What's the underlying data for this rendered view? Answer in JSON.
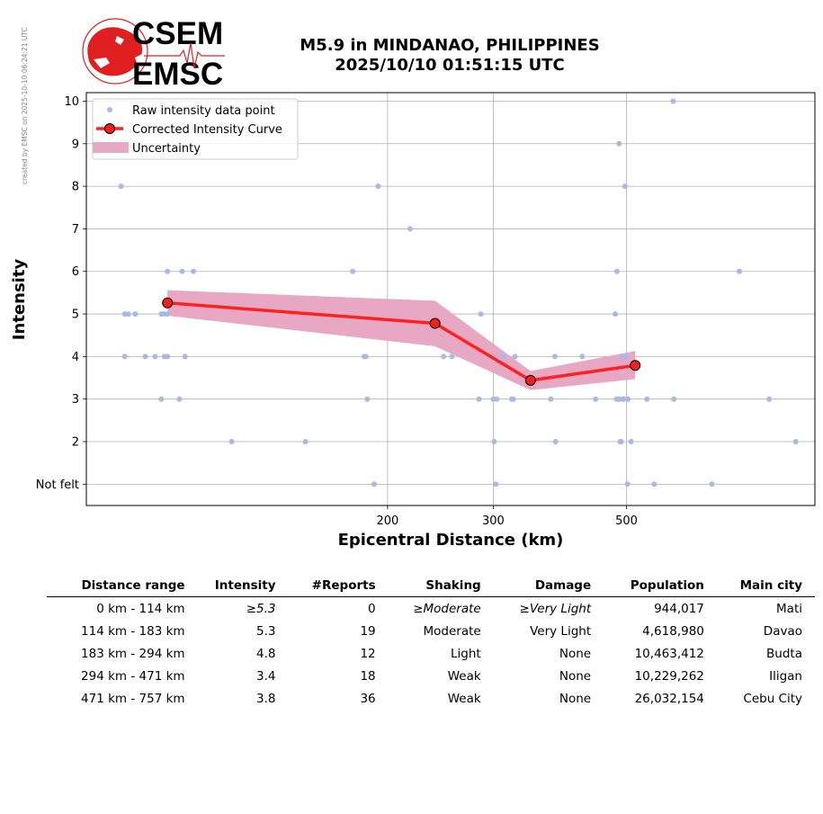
{
  "watermark": "created by EMSC on 2025-10-10 06:24:21 UTC",
  "logo": {
    "line1": "CSEM",
    "line2": "EMSC"
  },
  "title": {
    "line1": "M5.9 in MINDANAO, PHILIPPINES",
    "line2": "2025/10/10 01:51:15 UTC"
  },
  "colors": {
    "raw": "#aab8e8",
    "curve": "#ff2020",
    "marker_face": "#ee2020",
    "uncertainty": "#e8a8c4",
    "logo_red": "#e02020"
  },
  "chart_data": {
    "type": "scatter",
    "xlabel": "Epicentral Distance (km)",
    "ylabel": "Intensity",
    "xscale": "log",
    "xlim": [
      63,
      1030
    ],
    "ylim": [
      0.5,
      10.2
    ],
    "xticks": [
      200,
      300,
      500
    ],
    "xtick_labels": [
      "200",
      "300",
      "500"
    ],
    "yticks": [
      1,
      2,
      3,
      4,
      5,
      6,
      7,
      8,
      9,
      10
    ],
    "ytick_labels": [
      "Not felt",
      "2",
      "3",
      "4",
      "5",
      "6",
      "7",
      "8",
      "9",
      "10"
    ],
    "grid": true,
    "legend_position": "top-left",
    "legend": [
      "Raw intensity data point",
      "Corrected Intensity Curve",
      "Uncertainty"
    ],
    "series": [
      {
        "name": "Raw intensity data point",
        "points": [
          [
            72,
            8
          ],
          [
            73,
            5
          ],
          [
            74,
            5
          ],
          [
            76,
            5
          ],
          [
            73,
            4
          ],
          [
            79,
            4
          ],
          [
            82,
            4
          ],
          [
            84,
            3
          ],
          [
            84,
            5
          ],
          [
            85,
            5
          ],
          [
            86,
            5
          ],
          [
            85,
            4
          ],
          [
            86,
            4
          ],
          [
            86,
            6
          ],
          [
            90,
            3
          ],
          [
            91,
            6
          ],
          [
            92,
            4
          ],
          [
            95,
            6
          ],
          [
            110,
            2
          ],
          [
            146,
            2
          ],
          [
            175,
            6
          ],
          [
            183,
            4
          ],
          [
            184,
            4
          ],
          [
            185,
            3
          ],
          [
            193,
            8
          ],
          [
            190,
            1
          ],
          [
            218,
            7
          ],
          [
            248,
            4
          ],
          [
            256,
            4
          ],
          [
            286,
            5
          ],
          [
            284,
            3
          ],
          [
            295,
            4
          ],
          [
            300,
            3
          ],
          [
            301,
            2
          ],
          [
            303,
            1
          ],
          [
            304,
            3
          ],
          [
            309,
            4
          ],
          [
            312,
            4
          ],
          [
            322,
            3
          ],
          [
            324,
            3
          ],
          [
            326,
            4
          ],
          [
            374,
            3
          ],
          [
            381,
            2
          ],
          [
            380,
            4
          ],
          [
            422,
            4
          ],
          [
            444,
            3
          ],
          [
            479,
            5
          ],
          [
            481,
            3
          ],
          [
            482,
            6
          ],
          [
            484,
            3
          ],
          [
            486,
            9
          ],
          [
            486,
            3
          ],
          [
            488,
            2
          ],
          [
            490,
            4
          ],
          [
            490,
            2
          ],
          [
            492,
            3
          ],
          [
            494,
            4
          ],
          [
            495,
            3
          ],
          [
            497,
            8
          ],
          [
            499,
            4
          ],
          [
            502,
            1
          ],
          [
            503,
            3
          ],
          [
            509,
            2
          ],
          [
            541,
            3
          ],
          [
            556,
            1
          ],
          [
            598,
            10
          ],
          [
            600,
            3
          ],
          [
            694,
            1
          ],
          [
            771,
            6
          ],
          [
            864,
            3
          ],
          [
            957,
            2
          ]
        ]
      },
      {
        "name": "Corrected Intensity Curve",
        "x": [
          86,
          240,
          346,
          517
        ],
        "y": [
          5.26,
          4.78,
          3.44,
          3.79
        ]
      },
      {
        "name": "Uncertainty",
        "x": [
          86,
          240,
          346,
          517
        ],
        "upper": [
          5.56,
          5.31,
          3.66,
          4.13
        ],
        "lower": [
          4.96,
          4.24,
          3.21,
          3.47
        ]
      }
    ]
  },
  "table": {
    "headers": [
      "Distance range",
      "Intensity",
      "#Reports",
      "Shaking",
      "Damage",
      "Population",
      "Main city"
    ],
    "rows": [
      [
        "0 km -  114 km",
        "≥5.3",
        "0",
        "≥Moderate",
        "≥Very Light",
        "944,017",
        "Mati"
      ],
      [
        "114 km -  183 km",
        "5.3",
        "19",
        "Moderate",
        "Very Light",
        "4,618,980",
        "Davao"
      ],
      [
        "183 km -  294 km",
        "4.8",
        "12",
        "Light",
        "None",
        "10,463,412",
        "Budta"
      ],
      [
        "294 km -  471 km",
        "3.4",
        "18",
        "Weak",
        "None",
        "10,229,262",
        "Iligan"
      ],
      [
        "471 km -  757 km",
        "3.8",
        "36",
        "Weak",
        "None",
        "26,032,154",
        "Cebu City"
      ]
    ]
  }
}
